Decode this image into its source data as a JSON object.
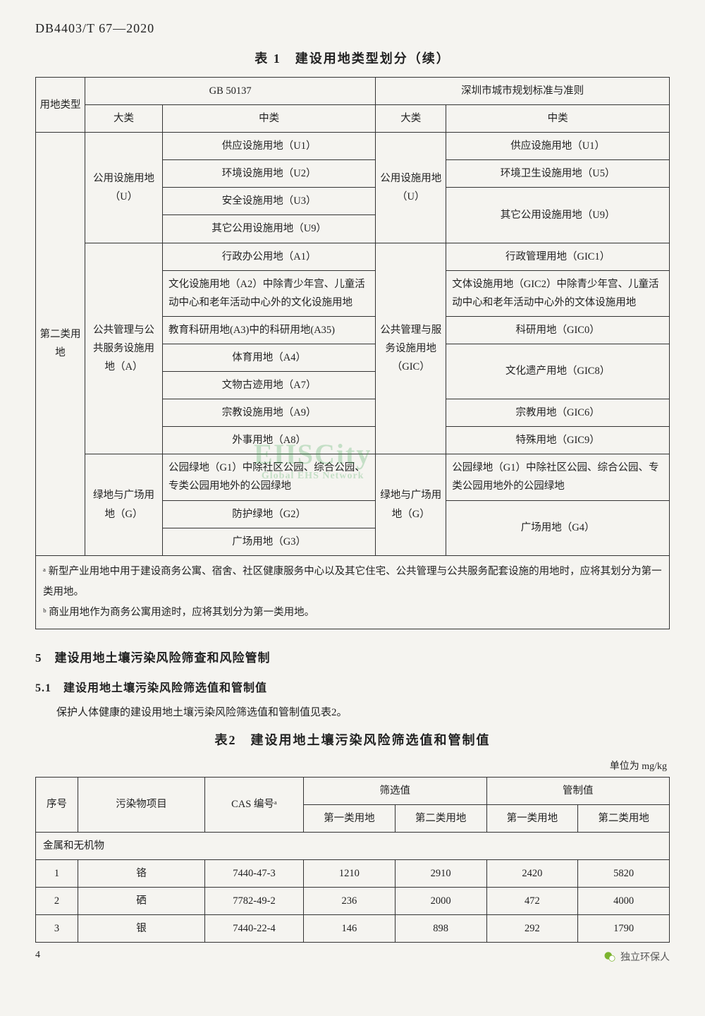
{
  "doc_code": "DB4403/T 67—2020",
  "table1": {
    "title": "表 1　建设用地类型划分（续）",
    "head": {
      "c1": "用地类型",
      "c2": "GB 50137",
      "c3": "深圳市城市规划标准与准则",
      "sub_major": "大类",
      "sub_mid": "中类"
    },
    "row_group_label": "第二类用地",
    "groups": [
      {
        "gb_major": "公用设施用地（U）",
        "sz_major": "公用设施用地（U）",
        "rows": [
          {
            "gb": "供应设施用地（U1）",
            "sz": "供应设施用地（U1）"
          },
          {
            "gb": "环境设施用地（U2）",
            "sz": "环境卫生设施用地（U5）"
          },
          {
            "gb": "安全设施用地（U3）",
            "sz": "其它公用设施用地（U9）",
            "sz_rowspan": 2
          },
          {
            "gb": "其它公用设施用地（U9）"
          }
        ]
      },
      {
        "gb_major": "公共管理与公共服务设施用地（A）",
        "sz_major": "公共管理与服务设施用地（GIC）",
        "rows": [
          {
            "gb": "行政办公用地（A1）",
            "sz": "行政管理用地（GIC1）"
          },
          {
            "gb": "文化设施用地（A2）中除青少年宫、儿童活动中心和老年活动中心外的文化设施用地",
            "sz": "文体设施用地（GIC2）中除青少年宫、儿童活动中心和老年活动中心外的文体设施用地"
          },
          {
            "gb": "教育科研用地(A3)中的科研用地(A35)",
            "sz": "科研用地（GIC0）"
          },
          {
            "gb": "体育用地（A4）",
            "sz": "文化遗产用地（GIC8）",
            "sz_rowspan": 2
          },
          {
            "gb": "文物古迹用地（A7）"
          },
          {
            "gb": "宗教设施用地（A9）",
            "sz": "宗教用地（GIC6）"
          },
          {
            "gb": "外事用地（A8）",
            "sz": "特殊用地（GIC9）"
          }
        ]
      },
      {
        "gb_major": "绿地与广场用地（G）",
        "sz_major": "绿地与广场用地（G）",
        "rows": [
          {
            "gb": "公园绿地（G1）中除社区公园、综合公园、专类公园用地外的公园绿地",
            "sz": "公园绿地（G1）中除社区公园、综合公园、专类公园用地外的公园绿地"
          },
          {
            "gb": "防护绿地（G2）",
            "sz": "广场用地（G4）",
            "sz_rowspan": 2
          },
          {
            "gb": "广场用地（G3）"
          }
        ]
      }
    ],
    "notes": [
      "ᵃ 新型产业用地中用于建设商务公寓、宿舍、社区健康服务中心以及其它住宅、公共管理与公共服务配套设施的用地时，应将其划分为第一类用地。",
      "ᵇ 商业用地作为商务公寓用途时，应将其划分为第一类用地。"
    ]
  },
  "section5": {
    "heading": "5　建设用地土壤污染风险筛查和风险管制",
    "sub": "5.1　建设用地土壤污染风险筛选值和管制值",
    "body": "保护人体健康的建设用地土壤污染风险筛选值和管制值见表2。"
  },
  "table2": {
    "title": "表2　建设用地土壤污染风险筛选值和管制值",
    "unit": "单位为 mg/kg",
    "head": {
      "no": "序号",
      "item": "污染物项目",
      "cas": "CAS 编号ᵃ",
      "screen": "筛选值",
      "control": "管制值",
      "c1": "第一类用地",
      "c2": "第二类用地"
    },
    "category": "金属和无机物",
    "rows": [
      {
        "no": "1",
        "item": "铬",
        "cas": "7440-47-3",
        "s1": "1210",
        "s2": "2910",
        "c1": "2420",
        "c2": "5820"
      },
      {
        "no": "2",
        "item": "硒",
        "cas": "7782-49-2",
        "s1": "236",
        "s2": "2000",
        "c1": "472",
        "c2": "4000"
      },
      {
        "no": "3",
        "item": "银",
        "cas": "7440-22-4",
        "s1": "146",
        "s2": "898",
        "c1": "292",
        "c2": "1790"
      }
    ]
  },
  "page_number": "4",
  "wechat_label": "独立环保人",
  "watermark": {
    "main": "EHSCity",
    "sub": "Global EHS Network"
  }
}
